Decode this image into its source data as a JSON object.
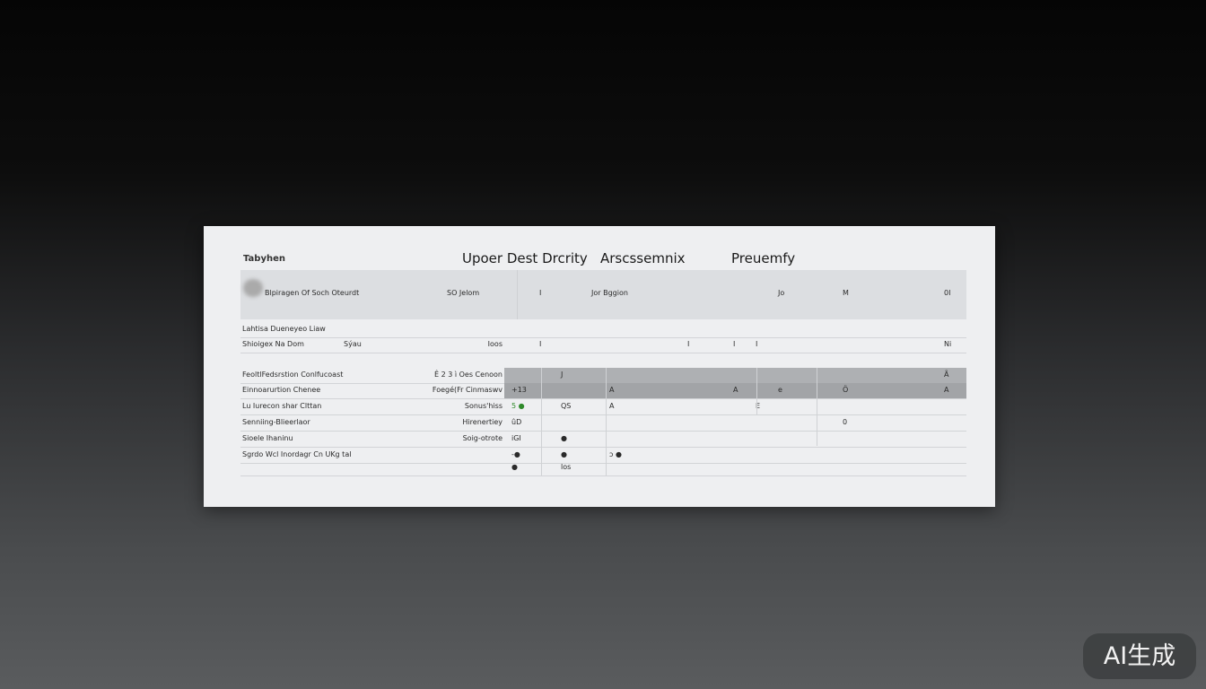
{
  "panel": {
    "label": "Tabyhen",
    "title_parts": [
      "Upoer Dest Drcrity",
      "Arscssemnix",
      "Preuemfy"
    ]
  },
  "header_row": [
    "Blpiragen Of Soch Oteurdt",
    "",
    "SO Jelom",
    "",
    "I",
    "",
    "Jor Bggion",
    "",
    "",
    "",
    "Jo",
    "M",
    "0I"
  ],
  "rows": [
    {
      "style": "plain",
      "cells": [
        "Lahtisa Dueneyeo Liaw",
        "",
        "",
        "",
        "",
        "",
        "",
        "",
        "",
        "",
        "",
        "",
        ""
      ]
    },
    {
      "style": "plain",
      "cells": [
        "Shioigex Na Dom",
        "Sýau",
        "Ioos",
        "",
        "I",
        "",
        "",
        "I",
        "I",
        "I",
        "",
        "",
        "Ni"
      ]
    },
    {
      "style": "gray",
      "cells": [
        "FeoltlFedsrstion Conlfucoast",
        "",
        "Ê 2 3 ì Oes Cenoon",
        "",
        "",
        "J",
        "",
        "",
        "",
        "",
        "",
        "",
        "Ã"
      ]
    },
    {
      "style": "gray dark",
      "cells": [
        "Einnoarurtion Chenee",
        "",
        "Foegé(Fr Cinmaswv",
        "+13",
        "",
        "",
        "A",
        "",
        "A",
        "",
        "e",
        "Ö",
        "A"
      ]
    },
    {
      "style": "plain",
      "cells": [
        "Lu Iurecon shar Clttan",
        "",
        "Sonus'hiss",
        "5 ●",
        "",
        "QS",
        "A",
        "",
        "",
        "E",
        "",
        "",
        ""
      ]
    },
    {
      "style": "plain",
      "cells": [
        "Senniing-Blieerlaor",
        "",
        "Hirenertiey",
        "ûD",
        "",
        "",
        "",
        "",
        "",
        "",
        "",
        "0",
        ""
      ]
    },
    {
      "style": "plain",
      "cells": [
        "Sioele Ihaninu",
        "",
        "Soig-otrote",
        "iGI",
        "",
        "●",
        "",
        "",
        "",
        "",
        "",
        "",
        ""
      ]
    },
    {
      "style": "plain",
      "cells": [
        "Sgrdo Wcl Inordagr Cn UKg tal",
        "",
        "",
        "-●",
        "",
        "●",
        "ɔ ●",
        "",
        "",
        "",
        "",
        "",
        ""
      ]
    },
    {
      "style": "plain",
      "cells": [
        "",
        "",
        "",
        "●",
        "",
        "los",
        "",
        "",
        "",
        "",
        "",
        "",
        ""
      ]
    }
  ],
  "accent_green": "#2f8a2a",
  "watermark": "AI生成"
}
